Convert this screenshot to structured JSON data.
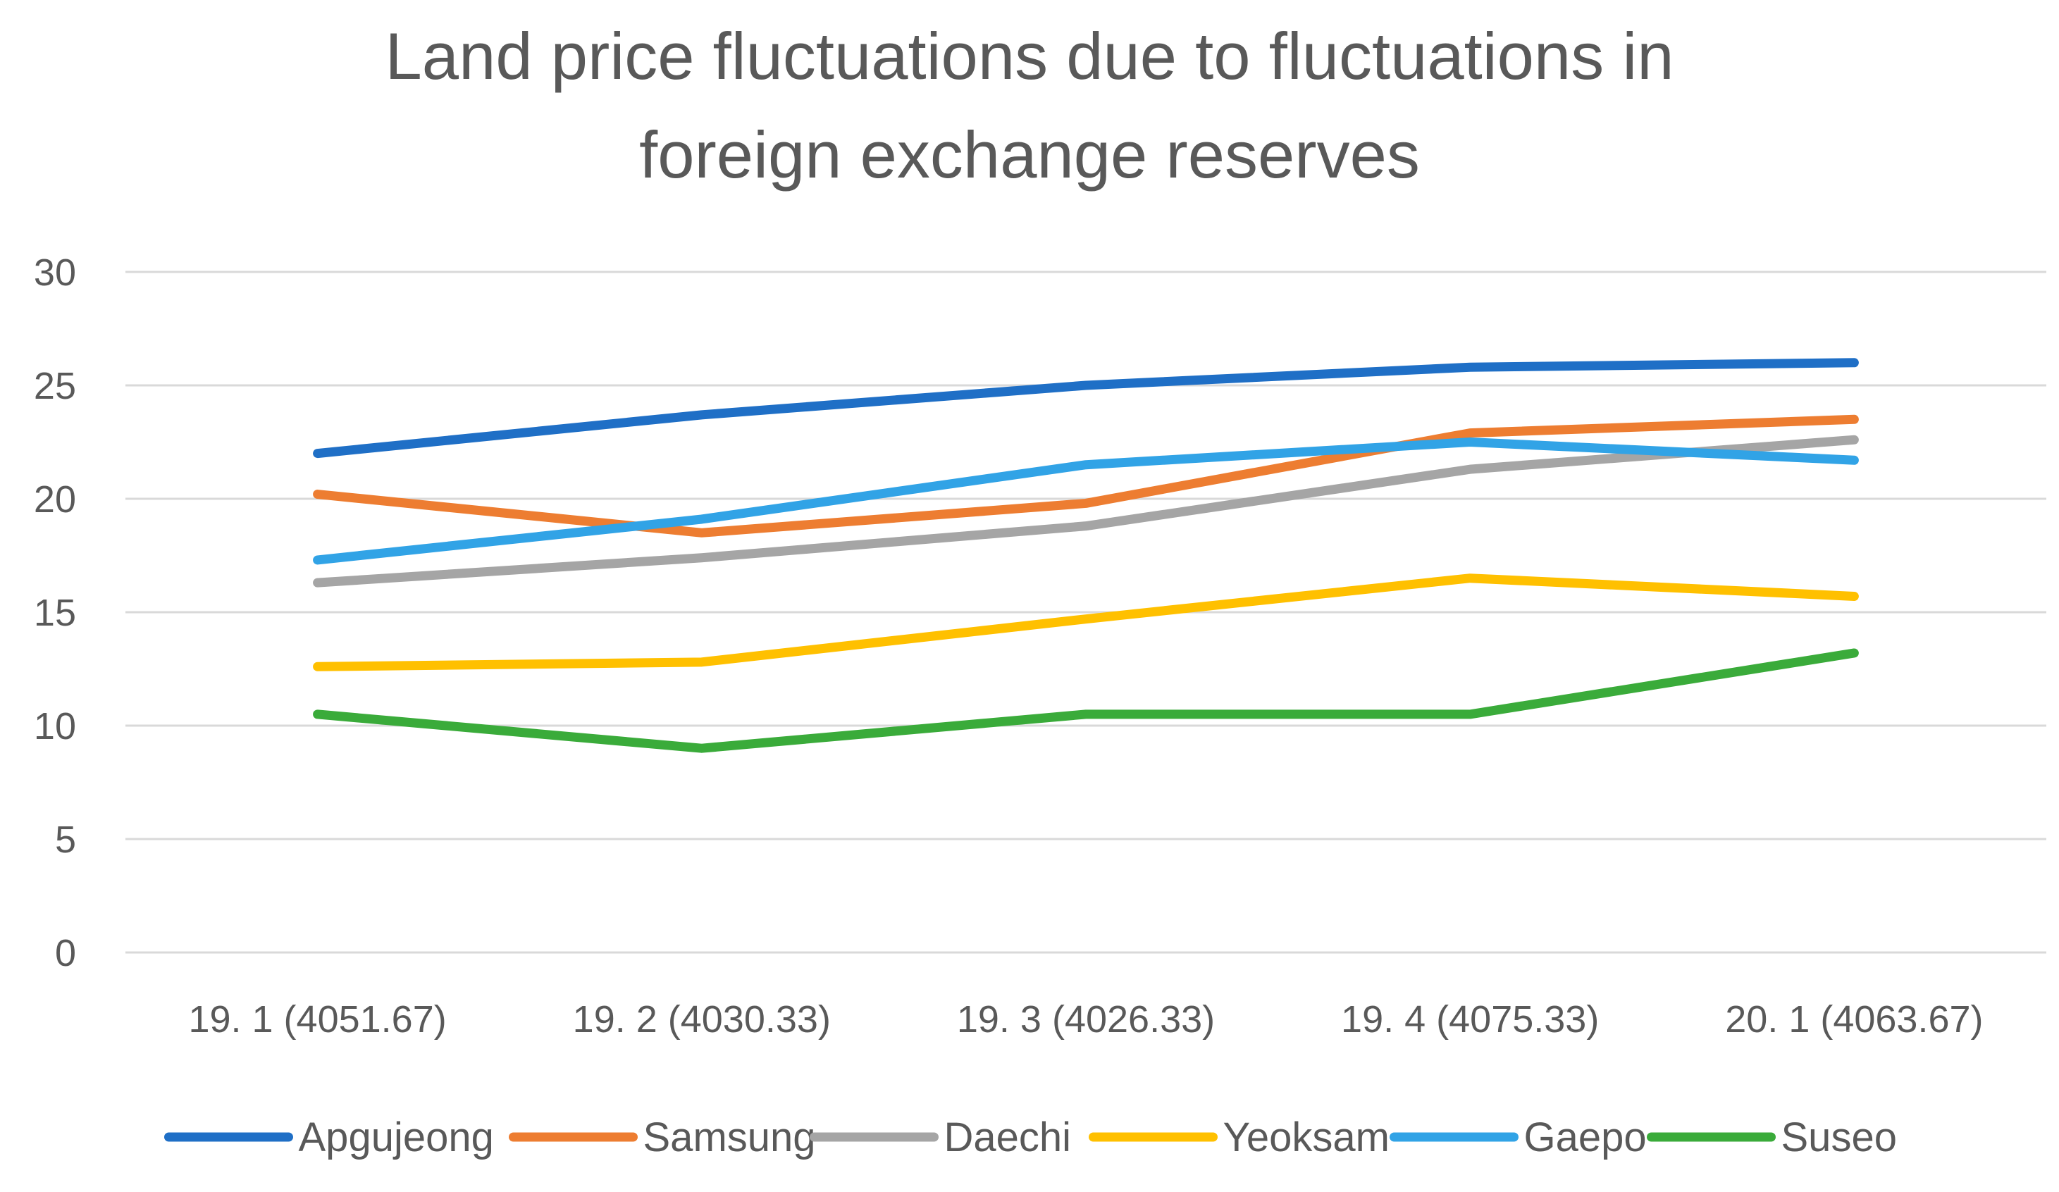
{
  "chart_data": {
    "type": "line",
    "title_line1": "Land price fluctuations due to fluctuations in",
    "title_line2": "foreign exchange reserves",
    "xlabel": "",
    "ylabel": "",
    "ylim": [
      0,
      30
    ],
    "yticks": [
      0,
      5,
      10,
      15,
      20,
      25,
      30
    ],
    "grid": true,
    "legend_position": "bottom",
    "categories": [
      "19. 1 (4051.67)",
      "19. 2 (4030.33)",
      "19. 3 (4026.33)",
      "19. 4 (4075.33)",
      "20. 1 (4063.67)"
    ],
    "series": [
      {
        "name": "Apgujeong",
        "color": "#1f6fc6",
        "values": [
          22.0,
          23.7,
          25.0,
          25.8,
          26.0
        ]
      },
      {
        "name": "Samsung",
        "color": "#ed7d31",
        "values": [
          20.2,
          18.5,
          19.8,
          22.9,
          23.5
        ]
      },
      {
        "name": "Daechi",
        "color": "#a5a5a5",
        "values": [
          16.3,
          17.4,
          18.8,
          21.3,
          22.6
        ]
      },
      {
        "name": "Yeoksam",
        "color": "#ffc000",
        "values": [
          12.6,
          12.8,
          14.7,
          16.5,
          15.7
        ]
      },
      {
        "name": "Gaepo",
        "color": "#31a3e6",
        "values": [
          17.3,
          19.1,
          21.5,
          22.5,
          21.7
        ]
      },
      {
        "name": "Suseo",
        "color": "#3aab3a",
        "values": [
          10.5,
          9.0,
          10.5,
          10.5,
          13.2
        ]
      }
    ]
  }
}
